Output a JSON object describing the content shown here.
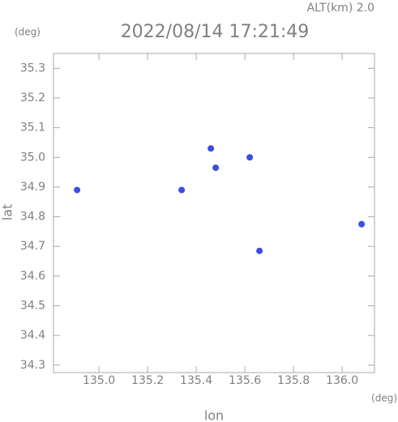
{
  "chart_data": {
    "type": "scatter",
    "title": "2022/08/14 17:21:49",
    "altitude_label": "ALT(km) 2.0",
    "y_unit": "(deg)",
    "x_unit": "(deg)",
    "xlabel": "lon",
    "ylabel": "lat",
    "x": [
      134.91,
      135.48,
      135.34,
      135.46,
      135.62,
      135.66,
      136.08
    ],
    "y": [
      34.89,
      34.965,
      34.89,
      35.03,
      35.0,
      34.685,
      34.775
    ],
    "color": "#3b4fe0",
    "xlim": [
      134.813,
      136.133
    ],
    "ylim": [
      34.275,
      35.35
    ],
    "xticks": [
      {
        "value": 135,
        "label": "135.0"
      },
      135.2,
      135.4,
      135.6,
      135.8,
      {
        "value": 136,
        "label": "136.0"
      }
    ],
    "yticks": [
      34.3,
      34.4,
      34.5,
      34.6,
      34.7,
      34.8,
      34.9,
      {
        "value": 35,
        "label": "35.0"
      },
      35.1,
      35.2,
      35.3
    ]
  }
}
